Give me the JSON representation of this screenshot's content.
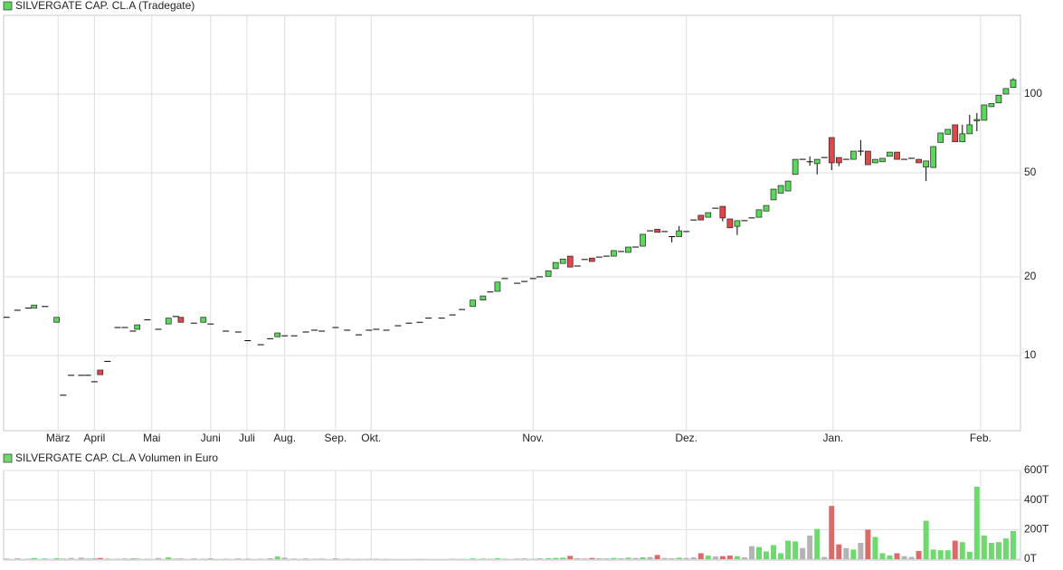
{
  "chart_data": [
    {
      "type": "candlestick",
      "legend": "SILVERGATE CAP. CL.A (Tradegate)",
      "x": [
        0.4,
        1.9,
        3.4,
        4.2,
        5.7,
        7.3,
        8.2,
        9.3,
        10.7,
        11.6,
        12.5,
        13.3,
        14.3,
        15.7,
        16.7,
        17.8,
        18.4,
        19.8,
        21.3,
        22.7,
        23.7,
        24.4,
        26.2,
        27.5,
        28.5,
        30.6,
        32.3,
        33.6,
        35.4,
        36.7,
        37.7,
        38.7,
        40.0,
        41.6,
        42.8,
        43.8,
        45.7,
        47.3,
        48.9,
        50.3,
        51.3,
        52.7,
        54.3,
        55.8,
        57.3,
        58.5,
        60.3,
        61.8,
        63.1,
        64.6,
        66.0,
        67.0,
        68.0,
        69.0,
        70.7,
        71.7,
        72.9,
        73.8,
        75,
        76,
        77,
        78,
        79,
        80,
        81,
        82,
        83,
        84,
        85,
        86,
        87,
        88,
        89,
        90,
        91,
        92,
        93,
        94,
        95,
        96,
        97,
        98,
        99,
        100,
        101,
        102,
        103,
        104,
        105,
        106,
        107,
        108,
        109,
        110,
        111,
        112,
        113,
        114,
        115,
        116,
        117,
        118,
        119,
        120,
        121,
        122,
        123,
        124,
        125,
        126,
        127,
        128,
        129,
        130,
        131,
        132,
        133,
        134,
        135,
        136,
        137,
        138,
        139
      ],
      "open": [
        14.0,
        14.9,
        15.2,
        15.2,
        15.4,
        13.4,
        7.05,
        8.4,
        8.4,
        8.4,
        7.94,
        8.8,
        9.5,
        12.8,
        12.8,
        12.4,
        12.6,
        13.7,
        12.6,
        13.2,
        14.1,
        14.0,
        13.3,
        13.4,
        13.2,
        12.4,
        12.3,
        11.4,
        11.0,
        11.6,
        11.8,
        11.9,
        11.9,
        12.3,
        12.5,
        12.4,
        12.8,
        12.5,
        12.0,
        12.5,
        12.6,
        12.5,
        13.0,
        13.3,
        13.4,
        13.9,
        13.9,
        14.3,
        15.0,
        15.4,
        16.3,
        17.5,
        17.6,
        19.7,
        18.9,
        19.2,
        19.7,
        20.0,
        20.1,
        21.5,
        22.5,
        24.0,
        22.0,
        23.3,
        23.6,
        23.8,
        24.0,
        24.0,
        25.0,
        24.8,
        26.0,
        26.2,
        30.0,
        30.4,
        29.8,
        28.5,
        28.5,
        29.8,
        33.0,
        34.4,
        33.8,
        36.6,
        37.2,
        33.3,
        31.2,
        32.8,
        33.6,
        33.8,
        35.7,
        39.4,
        41.8,
        42.6,
        49.3,
        56.3,
        55.1,
        54.2,
        57.2,
        68.2,
        57.2,
        56.3,
        56.3,
        60.5,
        60.5,
        54.6,
        55.1,
        57.8,
        60.0,
        56.3,
        56.8,
        56.3,
        52.6,
        52.4,
        65.3,
        70.2,
        76.3,
        65.7,
        70.5,
        79.0,
        79.4,
        89.5,
        92.5,
        100,
        106
      ],
      "high": [
        14.0,
        14.9,
        15.2,
        15.6,
        15.4,
        14.0,
        7.05,
        8.4,
        8.4,
        8.4,
        7.94,
        8.8,
        9.5,
        12.8,
        12.8,
        12.4,
        13.1,
        13.7,
        12.6,
        13.9,
        14.1,
        14.0,
        13.3,
        14.0,
        13.2,
        12.4,
        12.3,
        11.4,
        11.0,
        11.6,
        12.2,
        11.9,
        11.9,
        12.3,
        12.5,
        12.4,
        12.8,
        12.5,
        12.0,
        12.5,
        12.6,
        12.5,
        13.0,
        13.3,
        13.4,
        13.9,
        13.9,
        14.3,
        15.0,
        16.3,
        16.9,
        17.5,
        19.1,
        19.7,
        18.9,
        19.2,
        19.7,
        20.0,
        21.1,
        22.7,
        23.4,
        24.0,
        22.0,
        23.3,
        23.6,
        23.8,
        24.0,
        25.2,
        25.0,
        26.0,
        26.0,
        29.1,
        30.0,
        30.4,
        29.8,
        28.5,
        31.3,
        29.8,
        33.0,
        34.4,
        35.2,
        36.6,
        37.2,
        33.3,
        32.8,
        32.8,
        33.6,
        36.1,
        37.5,
        43.3,
        44.7,
        46.5,
        56.3,
        56.3,
        57.8,
        56.3,
        57.2,
        68.2,
        57.2,
        56.3,
        60.5,
        66.7,
        60.5,
        56.3,
        56.8,
        60.0,
        60.0,
        56.3,
        56.8,
        56.3,
        55.5,
        63.0,
        71.0,
        73.3,
        76.3,
        76.3,
        83.3,
        84.6,
        90.9,
        92.0,
        99.0,
        105,
        115
      ],
      "low": [
        14.0,
        14.9,
        15.2,
        15.2,
        15.4,
        13.4,
        7.05,
        8.4,
        8.4,
        8.4,
        7.94,
        8.45,
        9.5,
        12.8,
        12.8,
        12.4,
        12.6,
        13.7,
        12.6,
        13.2,
        14.1,
        13.4,
        13.3,
        13.4,
        13.2,
        12.4,
        12.3,
        11.4,
        11.0,
        11.6,
        11.8,
        11.9,
        11.9,
        12.3,
        12.5,
        12.4,
        12.8,
        12.5,
        12.0,
        12.5,
        12.6,
        12.5,
        13.0,
        13.3,
        13.4,
        13.9,
        13.9,
        14.3,
        15.0,
        15.4,
        16.3,
        17.5,
        17.6,
        19.7,
        18.9,
        19.2,
        19.7,
        20.0,
        20.1,
        21.5,
        22.5,
        21.8,
        22.0,
        23.3,
        22.9,
        23.8,
        24.0,
        24.0,
        25.0,
        24.8,
        26.0,
        26.2,
        30.0,
        29.6,
        29.8,
        27.1,
        28.5,
        29.8,
        33.0,
        33.0,
        33.8,
        36.6,
        32.6,
        30.8,
        28.9,
        32.8,
        33.6,
        33.8,
        35.7,
        39.4,
        41.8,
        42.6,
        49.3,
        56.3,
        53.2,
        49.3,
        57.2,
        51.2,
        53.0,
        56.3,
        56.3,
        58.2,
        53.7,
        54.6,
        55.1,
        57.8,
        56.3,
        56.3,
        56.8,
        54.6,
        46.5,
        52.4,
        65.3,
        70.2,
        65.7,
        65.7,
        70.5,
        72.1,
        79.4,
        89.5,
        92.5,
        100,
        106
      ],
      "close": [
        14.0,
        14.9,
        15.2,
        15.6,
        15.4,
        14.0,
        7.05,
        8.4,
        8.4,
        8.4,
        7.94,
        8.45,
        9.5,
        12.8,
        12.8,
        12.4,
        13.1,
        13.7,
        12.6,
        13.9,
        14.1,
        13.4,
        13.3,
        14.0,
        13.2,
        12.4,
        12.3,
        11.4,
        11.0,
        11.6,
        12.2,
        11.9,
        11.9,
        12.3,
        12.5,
        12.4,
        12.8,
        12.5,
        12.0,
        12.5,
        12.6,
        12.5,
        13.0,
        13.3,
        13.4,
        13.9,
        13.9,
        14.3,
        15.0,
        16.3,
        16.9,
        17.5,
        19.1,
        19.7,
        18.9,
        19.2,
        19.7,
        20.0,
        21.1,
        22.7,
        23.4,
        21.8,
        22.0,
        23.3,
        22.9,
        23.8,
        24.0,
        25.2,
        25.0,
        26.0,
        26.0,
        29.1,
        30.0,
        29.6,
        29.8,
        28.5,
        30.0,
        29.8,
        33.0,
        33.0,
        35.2,
        36.6,
        33.6,
        30.8,
        32.8,
        32.8,
        33.6,
        36.1,
        37.5,
        43.3,
        44.7,
        46.5,
        56.3,
        56.3,
        55.1,
        56.3,
        57.2,
        54.6,
        54.6,
        56.3,
        60.5,
        60.5,
        53.7,
        56.3,
        56.8,
        60.0,
        56.3,
        56.3,
        56.8,
        54.6,
        55.5,
        63.0,
        71.0,
        73.3,
        65.7,
        70.5,
        76.3,
        80.0,
        90.9,
        92.0,
        99.0,
        105,
        113.5
      ],
      "xlim": [
        0,
        140
      ],
      "xticks": [
        {
          "value": 7.5,
          "label": "März"
        },
        {
          "value": 12.5,
          "label": "April"
        },
        {
          "value": 20.4,
          "label": "Mai"
        },
        {
          "value": 28.5,
          "label": "Juni"
        },
        {
          "value": 33.5,
          "label": "Juli"
        },
        {
          "value": 38.7,
          "label": "Aug."
        },
        {
          "value": 45.7,
          "label": "Sep."
        },
        {
          "value": 50.6,
          "label": "Okt."
        },
        {
          "value": 72.9,
          "label": "Nov."
        },
        {
          "value": 94.0,
          "label": "Dez."
        },
        {
          "value": 114.2,
          "label": "Jan."
        },
        {
          "value": 134.5,
          "label": "Feb."
        }
      ],
      "ylim": [
        5.16,
        200
      ],
      "yticks": [
        10,
        20,
        50,
        100
      ],
      "log_scale": true,
      "grid": true,
      "up_color": "#5cd65c",
      "down_color": "#e0474c",
      "flat_color": "#000000"
    },
    {
      "type": "bar",
      "legend": "SILVERGATE CAP. CL.A Volumen in Euro",
      "values": [
        4,
        6,
        3,
        8,
        5,
        6,
        4,
        8,
        10,
        4,
        6,
        8,
        4,
        3,
        5,
        6,
        4,
        3,
        8,
        12,
        4,
        3,
        5,
        2,
        6,
        3,
        5,
        4,
        3,
        6,
        18,
        10,
        4,
        5,
        3,
        4,
        6,
        3,
        2,
        2,
        3,
        2,
        0,
        0,
        2,
        0,
        0,
        3,
        2,
        5,
        4,
        3,
        6,
        3,
        4,
        5,
        3,
        6,
        6,
        8,
        10,
        22,
        6,
        5,
        8,
        6,
        5,
        8,
        6,
        10,
        8,
        12,
        14,
        28,
        8,
        6,
        10,
        8,
        12,
        40,
        24,
        18,
        20,
        24,
        20,
        12,
        88,
        82,
        52,
        95,
        40,
        125,
        120,
        75,
        160,
        205,
        15,
        360,
        100,
        75,
        65,
        110,
        200,
        150,
        40,
        25,
        40,
        20,
        15,
        55,
        260,
        65,
        60,
        60,
        125,
        115,
        50,
        490,
        160,
        110,
        115,
        140,
        190
      ],
      "ylim": [
        0,
        600
      ],
      "yticks": [
        {
          "value": 0,
          "label": "0T"
        },
        {
          "value": 200,
          "label": "200T"
        },
        {
          "value": 400,
          "label": "400T"
        },
        {
          "value": 600,
          "label": "600T"
        }
      ],
      "grid": true,
      "up_color": "#6fd86f",
      "down_color": "#d96b6b",
      "flat_color": "#b4b4b4"
    }
  ]
}
